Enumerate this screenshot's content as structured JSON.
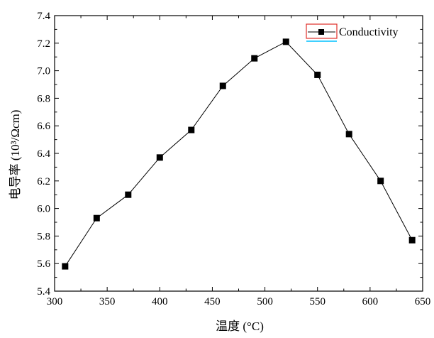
{
  "chart_data": {
    "type": "line",
    "title": "",
    "xlabel": "温度 (°C)",
    "ylabel": "电导率 (10³/Ωcm)",
    "xlim": [
      300,
      650
    ],
    "ylim": [
      5.4,
      7.4
    ],
    "x_ticks": [
      "300",
      "350",
      "400",
      "450",
      "500",
      "550",
      "600",
      "650"
    ],
    "y_ticks": [
      "5.4",
      "5.6",
      "5.8",
      "6.0",
      "6.2",
      "6.4",
      "6.6",
      "6.8",
      "7.0",
      "7.2",
      "7.4"
    ],
    "grid": false,
    "legend_position": "top-right",
    "series": [
      {
        "name": "Conductivity",
        "marker": "square",
        "color": "#000000",
        "x": [
          310,
          340,
          370,
          400,
          430,
          460,
          490,
          520,
          550,
          580,
          610,
          640
        ],
        "y": [
          5.58,
          5.93,
          6.1,
          6.37,
          6.57,
          6.89,
          7.09,
          7.21,
          6.97,
          6.54,
          6.2,
          5.77
        ]
      }
    ]
  },
  "colors": {
    "line": "#000000",
    "marker": "#000000",
    "legend_box_border": "#e0302a",
    "legend_underline": "#40d0ff"
  }
}
